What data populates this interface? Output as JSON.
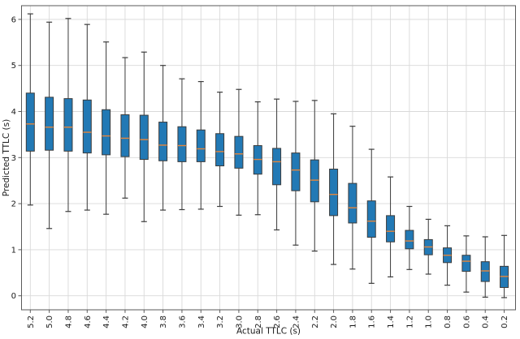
{
  "chart_data": {
    "type": "boxplot",
    "title": "",
    "xlabel": "Actual TTLC (s)",
    "ylabel": "Predicted TTLC (s)",
    "categories": [
      "5.2",
      "5.0",
      "4.8",
      "4.6",
      "4.4",
      "4.2",
      "4.0",
      "3.8",
      "3.6",
      "3.4",
      "3.2",
      "3.0",
      "2.8",
      "2.6",
      "2.4",
      "2.2",
      "2.0",
      "1.8",
      "1.6",
      "1.4",
      "1.2",
      "1.0",
      "0.8",
      "0.6",
      "0.4",
      "0.2"
    ],
    "yticks": [
      "0",
      "1",
      "2",
      "3",
      "4",
      "5",
      "6"
    ],
    "ylim": [
      -0.3,
      6.3
    ],
    "grid": true,
    "legend": "none",
    "colors": {
      "box_fill": "#2279b5",
      "box_edge": "#3c3c3c",
      "median": "#e6863b",
      "whisker": "#3c3c3c",
      "grid": "#d9d9d9",
      "spine": "#5a5a5a",
      "text": "#1a1a1a",
      "background": "#ffffff"
    },
    "boxes": [
      {
        "label": "5.2",
        "low": 1.97,
        "q1": 3.14,
        "median": 3.73,
        "q3": 4.4,
        "high": 6.12
      },
      {
        "label": "5.0",
        "low": 1.46,
        "q1": 3.16,
        "median": 3.66,
        "q3": 4.31,
        "high": 5.94
      },
      {
        "label": "4.8",
        "low": 1.83,
        "q1": 3.14,
        "median": 3.66,
        "q3": 4.28,
        "high": 6.02
      },
      {
        "label": "4.6",
        "low": 1.86,
        "q1": 3.1,
        "median": 3.55,
        "q3": 4.25,
        "high": 5.89
      },
      {
        "label": "4.4",
        "low": 1.77,
        "q1": 3.06,
        "median": 3.47,
        "q3": 4.04,
        "high": 5.51
      },
      {
        "label": "4.2",
        "low": 2.12,
        "q1": 3.02,
        "median": 3.42,
        "q3": 3.93,
        "high": 5.17
      },
      {
        "label": "4.0",
        "low": 1.61,
        "q1": 2.96,
        "median": 3.39,
        "q3": 3.92,
        "high": 5.29
      },
      {
        "label": "3.8",
        "low": 1.86,
        "q1": 2.93,
        "median": 3.27,
        "q3": 3.77,
        "high": 5.0
      },
      {
        "label": "3.6",
        "low": 1.87,
        "q1": 2.91,
        "median": 3.26,
        "q3": 3.67,
        "high": 4.71
      },
      {
        "label": "3.4",
        "low": 1.88,
        "q1": 2.91,
        "median": 3.19,
        "q3": 3.6,
        "high": 4.65
      },
      {
        "label": "3.2",
        "low": 1.94,
        "q1": 2.82,
        "median": 3.13,
        "q3": 3.52,
        "high": 4.42
      },
      {
        "label": "3.0",
        "low": 1.75,
        "q1": 2.77,
        "median": 3.08,
        "q3": 3.46,
        "high": 4.48
      },
      {
        "label": "2.8",
        "low": 1.76,
        "q1": 2.64,
        "median": 2.96,
        "q3": 3.26,
        "high": 4.21
      },
      {
        "label": "2.6",
        "low": 1.43,
        "q1": 2.41,
        "median": 2.91,
        "q3": 3.2,
        "high": 4.27
      },
      {
        "label": "2.4",
        "low": 1.1,
        "q1": 2.28,
        "median": 2.73,
        "q3": 3.1,
        "high": 4.22
      },
      {
        "label": "2.2",
        "low": 0.97,
        "q1": 2.04,
        "median": 2.51,
        "q3": 2.95,
        "high": 4.24
      },
      {
        "label": "2.0",
        "low": 0.68,
        "q1": 1.74,
        "median": 2.2,
        "q3": 2.75,
        "high": 3.95
      },
      {
        "label": "1.8",
        "low": 0.58,
        "q1": 1.58,
        "median": 1.91,
        "q3": 2.44,
        "high": 3.68
      },
      {
        "label": "1.6",
        "low": 0.27,
        "q1": 1.27,
        "median": 1.62,
        "q3": 2.06,
        "high": 3.18
      },
      {
        "label": "1.4",
        "low": 0.41,
        "q1": 1.17,
        "median": 1.4,
        "q3": 1.74,
        "high": 2.58
      },
      {
        "label": "1.2",
        "low": 0.57,
        "q1": 1.02,
        "median": 1.19,
        "q3": 1.42,
        "high": 1.94
      },
      {
        "label": "1.0",
        "low": 0.47,
        "q1": 0.89,
        "median": 1.06,
        "q3": 1.22,
        "high": 1.66
      },
      {
        "label": "0.8",
        "low": 0.23,
        "q1": 0.72,
        "median": 0.88,
        "q3": 1.04,
        "high": 1.52
      },
      {
        "label": "0.6",
        "low": 0.08,
        "q1": 0.53,
        "median": 0.75,
        "q3": 0.88,
        "high": 1.3
      },
      {
        "label": "0.4",
        "low": -0.03,
        "q1": 0.31,
        "median": 0.54,
        "q3": 0.74,
        "high": 1.28
      },
      {
        "label": "0.2",
        "low": -0.04,
        "q1": 0.18,
        "median": 0.42,
        "q3": 0.64,
        "high": 1.31
      }
    ]
  }
}
